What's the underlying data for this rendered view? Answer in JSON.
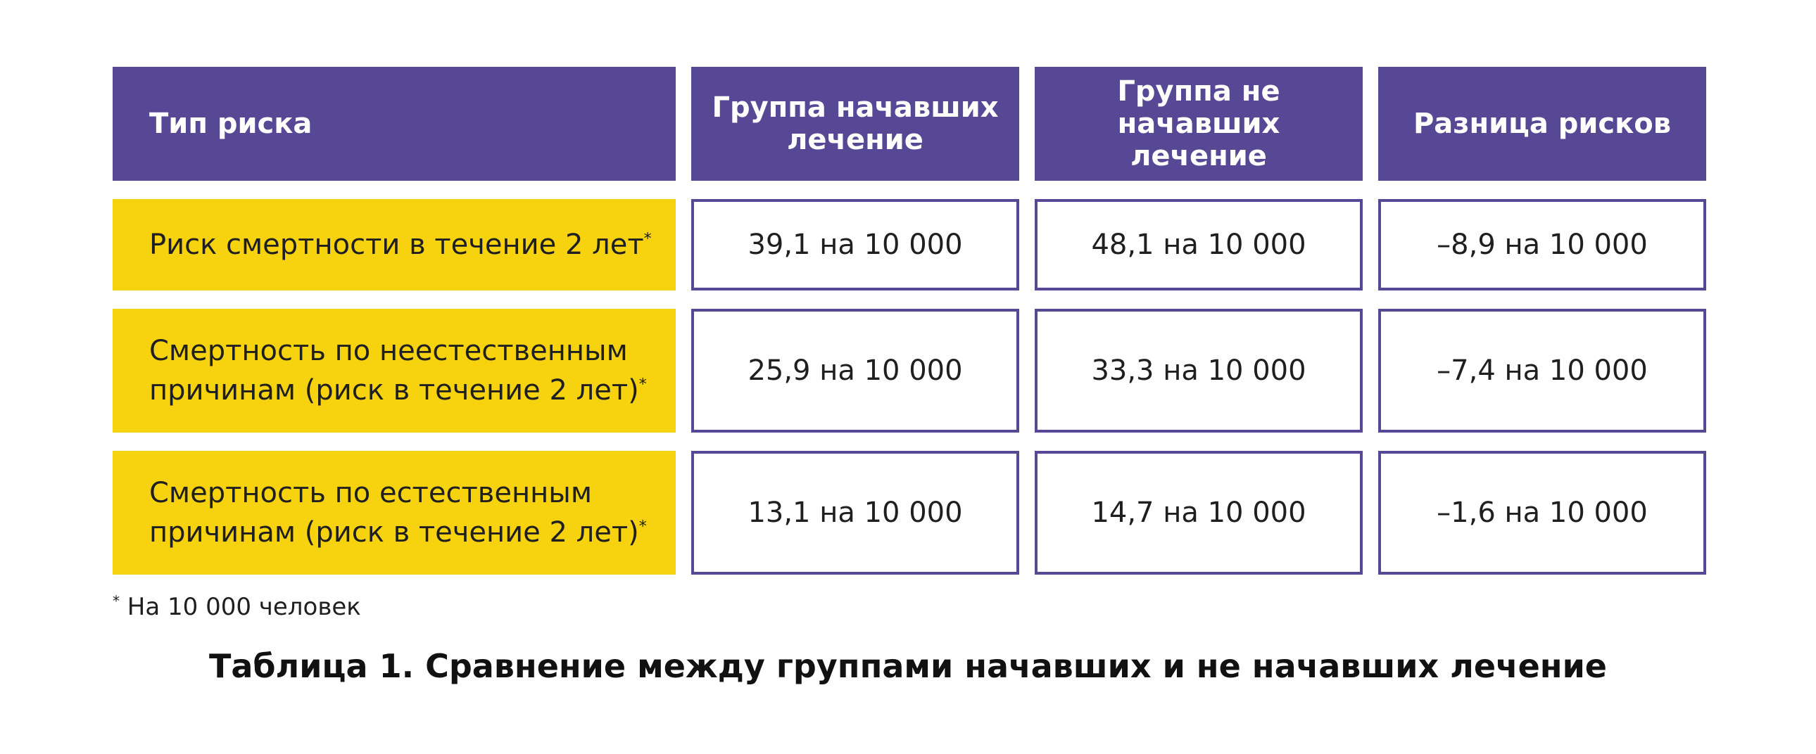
{
  "table": {
    "headers": [
      "Тип риска",
      "Группа начавших лечение",
      "Группа не начавших лечение",
      "Разница рисков"
    ],
    "rows": [
      {
        "label_lines": [
          "Риск смертности в течение 2 лет"
        ],
        "note_mark": "*",
        "values": [
          "39,1 на 10 000",
          "48,1 на 10 000",
          "–8,9 на 10 000"
        ]
      },
      {
        "label_lines": [
          "Смертность по неестественным",
          "причинам (риск в течение 2 лет)"
        ],
        "note_mark": "*",
        "values": [
          "25,9 на 10 000",
          "33,3 на 10 000",
          "–7,4 на 10 000"
        ]
      },
      {
        "label_lines": [
          "Смертность по естественным",
          "причинам (риск в течение 2 лет)"
        ],
        "note_mark": "*",
        "values": [
          "13,1 на 10 000",
          "14,7 на 10 000",
          "–1,6 на 10 000"
        ]
      }
    ]
  },
  "footnote": {
    "mark": "*",
    "text": " На 10 000 человек"
  },
  "caption": "Таблица 1. Сравнение между группами начавших и не начавших лечение",
  "colors": {
    "header_bg": "#574896",
    "label_bg": "#f6d20f",
    "cell_border": "#574896"
  }
}
